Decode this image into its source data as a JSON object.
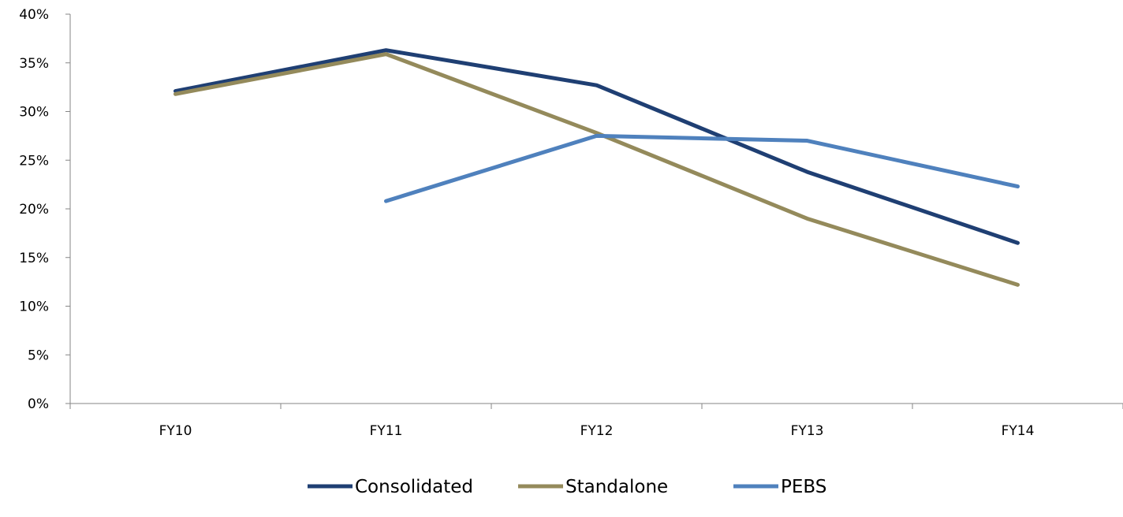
{
  "chart_data": {
    "type": "line",
    "title": "",
    "xlabel": "",
    "ylabel": "",
    "categories": [
      "FY10",
      "FY11",
      "FY12",
      "FY13",
      "FY14"
    ],
    "ylim": [
      0,
      40
    ],
    "yticks": [
      0,
      5,
      10,
      15,
      20,
      25,
      30,
      35,
      40
    ],
    "ytick_labels": [
      "0%",
      "5%",
      "10%",
      "15%",
      "20%",
      "25%",
      "30%",
      "35%",
      "40%"
    ],
    "grid": false,
    "legend_position": "bottom",
    "series": [
      {
        "name": "Consolidated",
        "color": "#1f3f73",
        "values": [
          32.1,
          36.3,
          32.7,
          23.8,
          16.5
        ]
      },
      {
        "name": "Standalone",
        "color": "#948a5b",
        "values": [
          31.8,
          35.9,
          27.8,
          19.0,
          12.2
        ]
      },
      {
        "name": "PEBS",
        "color": "#4f81bd",
        "values": [
          null,
          20.8,
          27.5,
          27.0,
          22.3
        ]
      }
    ]
  }
}
